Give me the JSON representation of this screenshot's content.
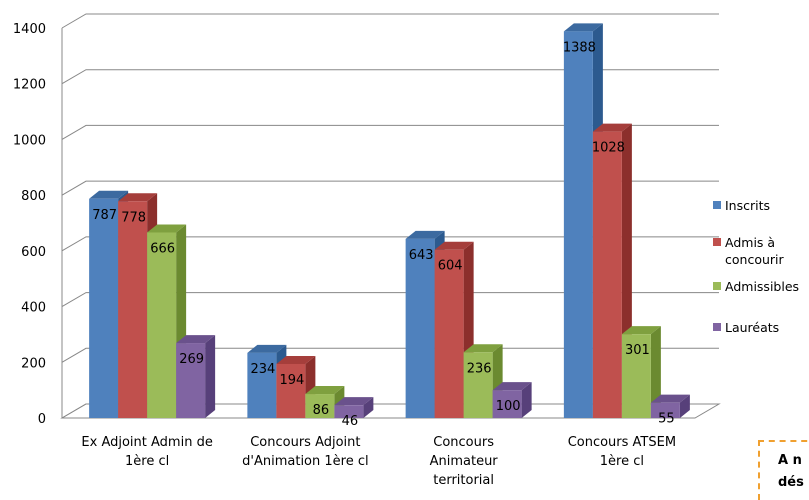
{
  "chart_data": {
    "type": "bar",
    "title": "",
    "xlabel": "",
    "ylabel": "",
    "ylim": [
      0,
      1400
    ],
    "yticks": [
      0,
      200,
      400,
      600,
      800,
      1000,
      1200,
      1400
    ],
    "grid": true,
    "legend_position": "right",
    "categories": [
      [
        "Ex Adjoint Admin de",
        "1ère cl"
      ],
      [
        "Concours Adjoint",
        "d'Animation 1ère cl"
      ],
      [
        "Concours",
        "Animateur",
        "territorial"
      ],
      [
        "Concours ATSEM",
        "1ère cl"
      ]
    ],
    "series": [
      {
        "name": "Inscrits",
        "legend_lines": [
          "Inscrits"
        ],
        "values": [
          787,
          234,
          643,
          1388
        ],
        "color": "#4f81bd",
        "side": "#2c5a8f",
        "top": "#3c6aa0"
      },
      {
        "name": "Admis à concourir",
        "legend_lines": [
          "Admis à",
          "concourir"
        ],
        "values": [
          778,
          194,
          604,
          1028
        ],
        "color": "#c0504d",
        "side": "#8c2f2c",
        "top": "#a53e3b"
      },
      {
        "name": "Admissibles",
        "legend_lines": [
          "Admissibles"
        ],
        "values": [
          666,
          86,
          236,
          301
        ],
        "color": "#9bbb59",
        "side": "#6b8a30",
        "top": "#7fa03f"
      },
      {
        "name": "Lauréats",
        "legend_lines": [
          "Lauréats"
        ],
        "values": [
          269,
          46,
          100,
          55
        ],
        "color": "#8064a2",
        "side": "#57407a",
        "top": "#6a518c"
      }
    ]
  },
  "note": {
    "line1": "A n",
    "line2": "dés"
  }
}
